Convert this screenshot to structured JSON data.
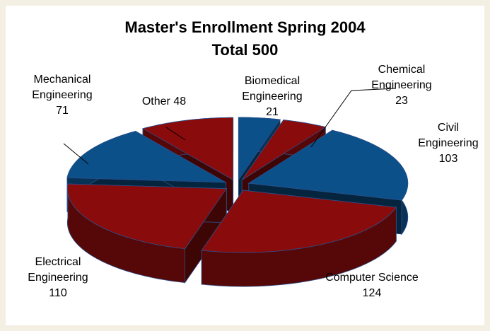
{
  "chart_data": {
    "type": "pie3d",
    "title": "Master's Enrollment Spring 2004",
    "subtitle": "Total 500",
    "categories": [
      "Biomedical Engineering",
      "Chemical Engineering",
      "Civil Engineering",
      "Computer Science",
      "Electrical Engineering",
      "Mechanical Engineering",
      "Other"
    ],
    "values": [
      21,
      23,
      103,
      124,
      110,
      71,
      48
    ],
    "colors": [
      "#0b5089",
      "#8a0b0b",
      "#0b5089",
      "#8a0b0b",
      "#8a0b0b",
      "#0b5089",
      "#8a0b0b"
    ]
  }
}
